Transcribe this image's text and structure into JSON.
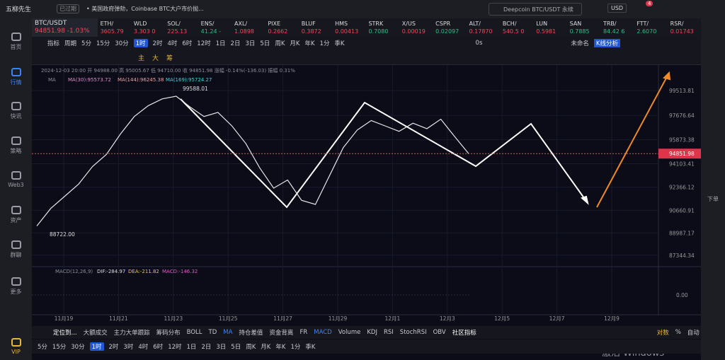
{
  "app": {
    "title": "五柳先生",
    "status": "已过期",
    "news": "• 美国政府弹劾，Coinbase BTC大户市价抛...",
    "search": "Deepcoin BTC/USDT 永续",
    "currency": "USD",
    "badge": "4"
  },
  "sidebar": [
    {
      "label": "首页",
      "color": "#9a9ca6"
    },
    {
      "label": "行情",
      "color": "#3b82f6"
    },
    {
      "label": "快讯",
      "color": "#9a9ca6"
    },
    {
      "label": "策略",
      "color": "#9a9ca6"
    },
    {
      "label": "Web3",
      "color": "#9a9ca6"
    },
    {
      "label": "资产",
      "color": "#9a9ca6"
    },
    {
      "label": "群聊",
      "color": "#9a9ca6"
    },
    {
      "label": "更多",
      "color": "#9a9ca6"
    },
    {
      "label": "VIP",
      "color": "#e9b53a"
    }
  ],
  "right_sidebar": [
    "下单"
  ],
  "tickers": [
    {
      "name": "BTC/USDT",
      "price": "94851.98 -1.03%",
      "color": "#f0485a"
    },
    {
      "name": "ETH/",
      "price": "3605.79",
      "color": "#f0485a"
    },
    {
      "name": "WLD",
      "price": "3.303 0",
      "color": "#f0485a"
    },
    {
      "name": "SOL/",
      "price": "225.13",
      "color": "#f0485a"
    },
    {
      "name": "ENS/",
      "price": "41.24 -",
      "color": "#2ebd85"
    },
    {
      "name": "AXL/",
      "price": "1.0898",
      "color": "#f0485a"
    },
    {
      "name": "PIXE",
      "price": "0.2662",
      "color": "#f0485a"
    },
    {
      "name": "BLUF",
      "price": "0.3872",
      "color": "#f0485a"
    },
    {
      "name": "HMS",
      "price": "0.00413",
      "color": "#f0485a"
    },
    {
      "name": "STRK",
      "price": "0.7080",
      "color": "#2ebd85"
    },
    {
      "name": "X/US",
      "price": "0.00019",
      "color": "#f0485a"
    },
    {
      "name": "CSPR",
      "price": "0.02097",
      "color": "#2ebd85"
    },
    {
      "name": "ALT/",
      "price": "0.17870",
      "color": "#f0485a"
    },
    {
      "name": "BCH/",
      "price": "540.5 0",
      "color": "#f0485a"
    },
    {
      "name": "LUN",
      "price": "0.5981",
      "color": "#f0485a"
    },
    {
      "name": "SAN",
      "price": "0.7885",
      "color": "#2ebd85"
    },
    {
      "name": "TRB/",
      "price": "84.42 6",
      "color": "#2ebd85"
    },
    {
      "name": "FTT/",
      "price": "2.6070",
      "color": "#2ebd85"
    },
    {
      "name": "RSR/",
      "price": "0.01743",
      "color": "#f0485a"
    }
  ],
  "toolbar": {
    "left": [
      "指标",
      "周期",
      "5分",
      "15分",
      "30分",
      "1时",
      "2时",
      "4时",
      "6时",
      "12时",
      "1日",
      "2日",
      "3日",
      "5日",
      "周K",
      "月K",
      "年K",
      "1分",
      "季K"
    ],
    "active": "1时",
    "tools": [
      "主",
      "大",
      "筹"
    ],
    "right": [
      "0s",
      "未命名",
      "K线分析"
    ]
  },
  "chart_info": {
    "ohlc": "2024-12-03 20:00 开 94988.00 高 95005.67 低 94710.00 收 94851.98 涨幅 -0.14%(-136.03) 振幅 0.31%",
    "ma": [
      "MA",
      "MA(30):95573.72",
      "MA(144):96245.38",
      "MA(169):95724.27"
    ],
    "high_label": "99588.01",
    "low_label": "88722.00",
    "macd": [
      "MACD(12,26,9)",
      "DIF:-284.97",
      "DEA:-211.82",
      "MACD:-146.32"
    ],
    "macd_zero": "0.00"
  },
  "chart_data": {
    "type": "line",
    "color": "#e6e6e6",
    "values": [
      89500,
      90800,
      91700,
      92600,
      93900,
      94800,
      96300,
      97600,
      98400,
      98900,
      99100,
      98300,
      97600,
      97900,
      96900,
      95600,
      93800,
      92300,
      92900,
      91400,
      91100,
      93200,
      95300,
      96600,
      97300,
      96900,
      96500,
      97100,
      96700,
      97400,
      96100,
      94851.98
    ],
    "ylim": [
      86600,
      101400
    ],
    "yticks": [
      99513.81,
      97676.64,
      95873.38,
      94103.41,
      92366.12,
      90660.91,
      88987.17,
      87344.34
    ],
    "x_labels": [
      "11月19",
      "11月21",
      "11月23",
      "11月25",
      "11月27",
      "11月29",
      "12月1",
      "12月3",
      "12月5",
      "12月7",
      "12月9"
    ],
    "grid": true
  },
  "bottom": {
    "indicators": [
      "定位到...",
      "大额成交",
      "主力大单跟踪",
      "筹码分布",
      "BOLL",
      "TD",
      "MA",
      "持仓差值",
      "资金背离",
      "FR",
      "MACD",
      "Volume",
      "KDJ",
      "RSI",
      "StochRSI",
      "OBV",
      "社区指标"
    ],
    "right": [
      "对数",
      "%",
      "自动"
    ],
    "timeframes": [
      "5分",
      "15分",
      "30分",
      "1时",
      "2时",
      "3时",
      "4时",
      "6时",
      "12时",
      "1日",
      "2日",
      "3日",
      "5日",
      "周K",
      "月K",
      "年K",
      "1分",
      "季K"
    ],
    "active": "1时"
  },
  "watermark": "激活 Windows"
}
